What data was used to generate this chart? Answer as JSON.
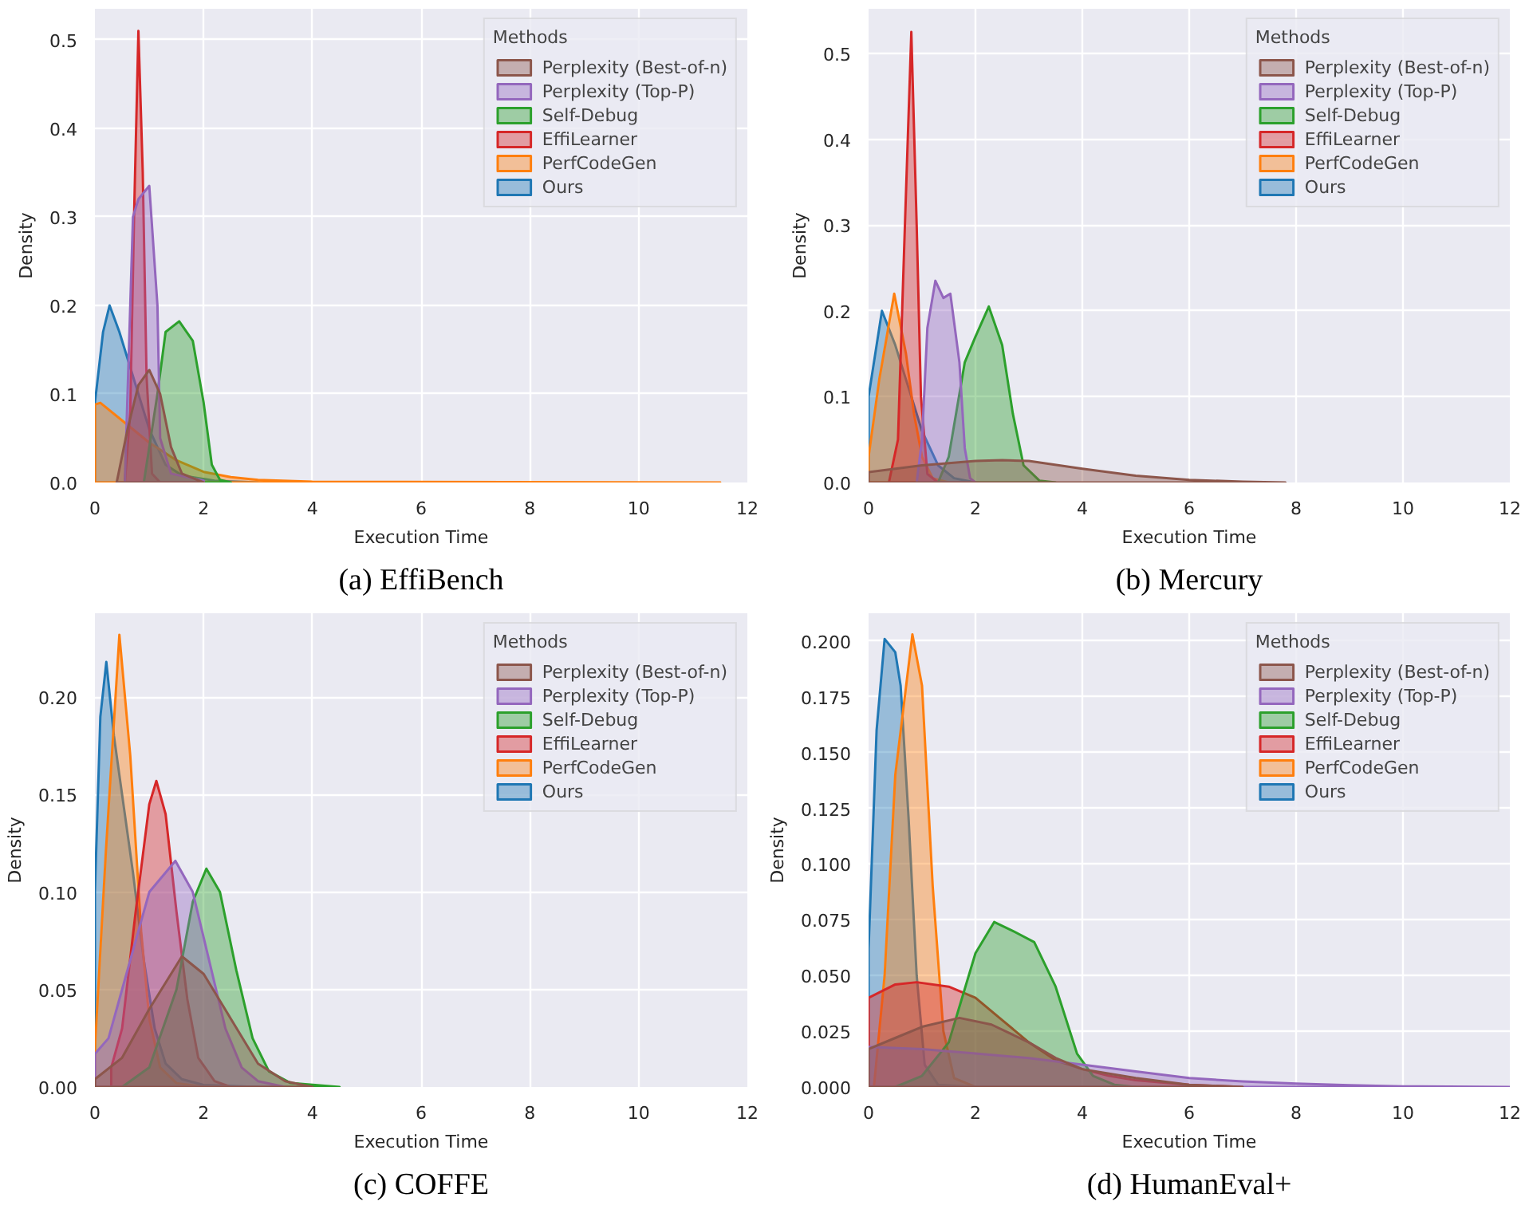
{
  "chart_data": [
    {
      "type": "area",
      "title": "(a) EffiBench",
      "xlabel": "Execution Time",
      "ylabel": "Density",
      "legend_title": "Methods",
      "legend": "top right",
      "grid": true,
      "xlim": [
        0,
        12
      ],
      "ylim": [
        0,
        0.535
      ],
      "xticks": [
        0,
        2,
        4,
        6,
        8,
        10,
        12
      ],
      "yticks": [
        {
          "value": 0,
          "label": "0.0"
        },
        0.1,
        0.2,
        0.3,
        0.4,
        0.5
      ],
      "series": [
        {
          "name": "Perplexity (Best-of-n)",
          "color": "#8c564b",
          "x": [
            0.4,
            0.6,
            0.8,
            1.0,
            1.2,
            1.4,
            1.6,
            2.0
          ],
          "values": [
            0,
            0.06,
            0.11,
            0.127,
            0.1,
            0.04,
            0.01,
            0
          ]
        },
        {
          "name": "Perplexity (Top-P)",
          "color": "#9467bd",
          "x": [
            0.55,
            0.7,
            0.8,
            1.0,
            1.15,
            1.2,
            1.4,
            2.0
          ],
          "values": [
            0,
            0.3,
            0.32,
            0.335,
            0.2,
            0.05,
            0.01,
            0.002
          ]
        },
        {
          "name": "Self-Debug",
          "color": "#2ca02c",
          "x": [
            0.9,
            1.15,
            1.3,
            1.55,
            1.8,
            2.0,
            2.15,
            2.3,
            2.5
          ],
          "values": [
            0,
            0.1,
            0.17,
            0.182,
            0.16,
            0.09,
            0.02,
            0.003,
            0
          ]
        },
        {
          "name": "EffiLearner",
          "color": "#d62728",
          "x": [
            0.55,
            0.65,
            0.72,
            0.8,
            0.88,
            0.95,
            1.05,
            1.2
          ],
          "values": [
            0,
            0.08,
            0.3,
            0.51,
            0.35,
            0.12,
            0.01,
            0
          ]
        },
        {
          "name": "PerfCodeGen",
          "color": "#ff7f0e",
          "x": [
            0,
            0.1,
            0.5,
            1.0,
            1.5,
            2.0,
            2.5,
            3.0,
            4.0,
            11.5
          ],
          "values": [
            0.088,
            0.09,
            0.07,
            0.045,
            0.025,
            0.012,
            0.006,
            0.003,
            0.001,
            0
          ]
        },
        {
          "name": "Ours",
          "color": "#1f77b4",
          "x": [
            0,
            0.15,
            0.27,
            0.45,
            0.6,
            0.8,
            1.0,
            1.3,
            1.6,
            2.2,
            3.0
          ],
          "values": [
            0.09,
            0.17,
            0.2,
            0.17,
            0.14,
            0.1,
            0.06,
            0.02,
            0.008,
            0.002,
            0
          ]
        }
      ]
    },
    {
      "type": "area",
      "title": "(b) Mercury",
      "xlabel": "Execution Time",
      "ylabel": "Density",
      "legend_title": "Methods",
      "legend": "top right",
      "grid": true,
      "xlim": [
        0,
        12
      ],
      "ylim": [
        0,
        0.552
      ],
      "xticks": [
        0,
        2,
        4,
        6,
        8,
        10,
        12
      ],
      "yticks": [
        {
          "value": 0,
          "label": "0.0"
        },
        0.1,
        0.2,
        0.3,
        0.4,
        0.5
      ],
      "series": [
        {
          "name": "Perplexity (Best-of-n)",
          "color": "#8c564b",
          "x": [
            0,
            1,
            2,
            2.5,
            3,
            4,
            5,
            6,
            7,
            7.8
          ],
          "values": [
            0.012,
            0.02,
            0.025,
            0.026,
            0.025,
            0.016,
            0.008,
            0.003,
            0.001,
            0
          ]
        },
        {
          "name": "Perplexity (Top-P)",
          "color": "#9467bd",
          "x": [
            0.9,
            1.0,
            1.1,
            1.25,
            1.4,
            1.53,
            1.7,
            1.8,
            1.9,
            2.0
          ],
          "values": [
            0,
            0.05,
            0.18,
            0.235,
            0.215,
            0.22,
            0.14,
            0.04,
            0.005,
            0
          ]
        },
        {
          "name": "Self-Debug",
          "color": "#2ca02c",
          "x": [
            1.3,
            1.5,
            1.8,
            2.0,
            2.25,
            2.5,
            2.7,
            2.9,
            3.2,
            3.5
          ],
          "values": [
            0,
            0.03,
            0.14,
            0.17,
            0.205,
            0.16,
            0.08,
            0.02,
            0.002,
            0
          ]
        },
        {
          "name": "EffiLearner",
          "color": "#d62728",
          "x": [
            0.38,
            0.55,
            0.68,
            0.8,
            0.9,
            0.98,
            1.1,
            1.3
          ],
          "values": [
            0,
            0.05,
            0.3,
            0.525,
            0.3,
            0.1,
            0.01,
            0
          ]
        },
        {
          "name": "PerfCodeGen",
          "color": "#ff7f0e",
          "x": [
            0,
            0.2,
            0.48,
            0.7,
            0.85,
            1.0,
            1.2,
            1.5
          ],
          "values": [
            0.03,
            0.12,
            0.22,
            0.15,
            0.08,
            0.03,
            0.005,
            0
          ]
        },
        {
          "name": "Ours",
          "color": "#1f77b4",
          "x": [
            0,
            0.25,
            0.5,
            0.8,
            1.0,
            1.3,
            1.6,
            2.0
          ],
          "values": [
            0.1,
            0.2,
            0.16,
            0.1,
            0.06,
            0.02,
            0.005,
            0
          ]
        }
      ]
    },
    {
      "type": "area",
      "title": "(c) COFFE",
      "xlabel": "Execution Time",
      "ylabel": "Density",
      "legend_title": "Methods",
      "legend": "top right",
      "grid": true,
      "xlim": [
        0,
        12
      ],
      "ylim": [
        0,
        0.243
      ],
      "xticks": [
        0,
        2,
        4,
        6,
        8,
        10,
        12
      ],
      "yticks": [
        {
          "value": 0,
          "label": "0.00"
        },
        0.05,
        {
          "value": 0.1,
          "label": "0.10"
        },
        0.15,
        {
          "value": 0.2,
          "label": "0.20"
        }
      ],
      "series": [
        {
          "name": "Perplexity (Best-of-n)",
          "color": "#8c564b",
          "x": [
            0,
            0.5,
            1.0,
            1.6,
            2.0,
            2.5,
            3.0,
            3.5,
            4.0
          ],
          "values": [
            0.004,
            0.015,
            0.04,
            0.067,
            0.058,
            0.035,
            0.012,
            0.003,
            0
          ]
        },
        {
          "name": "Perplexity (Top-P)",
          "color": "#9467bd",
          "x": [
            0,
            0.25,
            0.5,
            1.0,
            1.48,
            1.8,
            2.1,
            2.4,
            2.7,
            3.0,
            3.5
          ],
          "values": [
            0.017,
            0.025,
            0.05,
            0.1,
            0.116,
            0.1,
            0.065,
            0.03,
            0.01,
            0.003,
            0
          ]
        },
        {
          "name": "Self-Debug",
          "color": "#2ca02c",
          "x": [
            0.5,
            1.0,
            1.5,
            1.8,
            2.05,
            2.3,
            2.6,
            2.9,
            3.2,
            3.6,
            4.5
          ],
          "values": [
            0,
            0.01,
            0.05,
            0.095,
            0.112,
            0.1,
            0.06,
            0.025,
            0.008,
            0.002,
            0
          ]
        },
        {
          "name": "EffiLearner",
          "color": "#d62728",
          "x": [
            0.3,
            0.5,
            0.75,
            1.0,
            1.13,
            1.3,
            1.5,
            1.7,
            1.9,
            2.2,
            2.5
          ],
          "values": [
            0.01,
            0.03,
            0.09,
            0.145,
            0.157,
            0.14,
            0.09,
            0.045,
            0.015,
            0.003,
            0
          ]
        },
        {
          "name": "PerfCodeGen",
          "color": "#ff7f0e",
          "x": [
            0,
            0.2,
            0.45,
            0.65,
            0.85,
            1.0,
            1.2,
            1.5,
            2.0
          ],
          "values": [
            0.02,
            0.12,
            0.232,
            0.17,
            0.08,
            0.035,
            0.01,
            0.002,
            0
          ]
        },
        {
          "name": "Ours",
          "color": "#1f77b4",
          "x": [
            0,
            0.1,
            0.21,
            0.35,
            0.5,
            0.7,
            0.9,
            1.1,
            1.3,
            1.6,
            2.0,
            3.0
          ],
          "values": [
            0.1,
            0.19,
            0.218,
            0.18,
            0.15,
            0.11,
            0.065,
            0.03,
            0.012,
            0.004,
            0.001,
            0
          ]
        }
      ]
    },
    {
      "type": "area",
      "title": "(d) HumanEval+",
      "xlabel": "Execution Time",
      "ylabel": "Density",
      "legend_title": "Methods",
      "legend": "top right",
      "grid": true,
      "xlim": [
        0,
        12
      ],
      "ylim": [
        0,
        0.2125
      ],
      "xticks": [
        0,
        2,
        4,
        6,
        8,
        10,
        12
      ],
      "yticks": [
        {
          "value": 0,
          "label": "0.000"
        },
        0.025,
        {
          "value": 0.05,
          "label": "0.050"
        },
        0.075,
        {
          "value": 0.1,
          "label": "0.100"
        },
        0.125,
        {
          "value": 0.15,
          "label": "0.150"
        },
        0.175,
        {
          "value": 0.2,
          "label": "0.200"
        }
      ],
      "series": [
        {
          "name": "Perplexity (Best-of-n)",
          "color": "#8c564b",
          "x": [
            0,
            0.5,
            1.0,
            1.7,
            2.3,
            3.0,
            3.5,
            4.0,
            4.5,
            5.0,
            6.0,
            7.0
          ],
          "values": [
            0.017,
            0.022,
            0.027,
            0.031,
            0.028,
            0.02,
            0.013,
            0.008,
            0.006,
            0.004,
            0.001,
            0
          ]
        },
        {
          "name": "Perplexity (Top-P)",
          "color": "#9467bd",
          "x": [
            0,
            1,
            2,
            3,
            4,
            5,
            6,
            7,
            8,
            9,
            10,
            12
          ],
          "values": [
            0.018,
            0.017,
            0.015,
            0.013,
            0.01,
            0.007,
            0.004,
            0.0025,
            0.0015,
            0.0008,
            0.0003,
            0
          ]
        },
        {
          "name": "Self-Debug",
          "color": "#2ca02c",
          "x": [
            0.5,
            1.0,
            1.5,
            2.0,
            2.35,
            2.7,
            3.1,
            3.5,
            3.9,
            4.2,
            4.6,
            5.0
          ],
          "values": [
            0,
            0.005,
            0.02,
            0.06,
            0.074,
            0.07,
            0.065,
            0.045,
            0.015,
            0.005,
            0.001,
            0
          ]
        },
        {
          "name": "EffiLearner",
          "color": "#d62728",
          "x": [
            0,
            0.5,
            0.9,
            1.5,
            2.0,
            2.5,
            3.0,
            3.5,
            4.0,
            4.5,
            5.0,
            6.0,
            7.0
          ],
          "values": [
            0.04,
            0.046,
            0.047,
            0.045,
            0.04,
            0.03,
            0.02,
            0.012,
            0.008,
            0.005,
            0.003,
            0.001,
            0
          ]
        },
        {
          "name": "PerfCodeGen",
          "color": "#ff7f0e",
          "x": [
            0.1,
            0.3,
            0.5,
            0.82,
            1.0,
            1.2,
            1.4,
            1.6,
            2.0
          ],
          "values": [
            0,
            0.05,
            0.14,
            0.203,
            0.18,
            0.09,
            0.025,
            0.004,
            0
          ]
        },
        {
          "name": "Ours",
          "color": "#1f77b4",
          "x": [
            0,
            0.15,
            0.3,
            0.5,
            0.6,
            0.75,
            0.9,
            1.05,
            1.3,
            2.0
          ],
          "values": [
            0.062,
            0.16,
            0.201,
            0.195,
            0.18,
            0.12,
            0.05,
            0.01,
            0.001,
            0
          ]
        }
      ]
    }
  ]
}
